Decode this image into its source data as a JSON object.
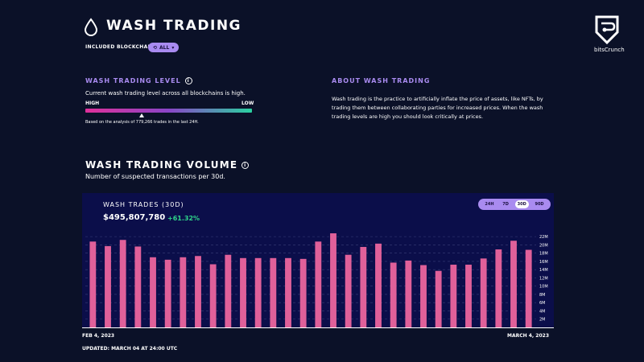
{
  "header": {
    "title": "WASH TRADING",
    "included_label": "INCLUDED BLOCKCHAINS",
    "chain_filter": "ALL",
    "brand": "bitsCrunch"
  },
  "level": {
    "heading": "WASH TRADING LEVEL",
    "description": "Current wash trading level across all blockchains is high.",
    "high_label": "HIGH",
    "low_label": "LOW",
    "basis": "Based on the analysis of 779,266 trades in the last 24H."
  },
  "about": {
    "heading": "ABOUT WASH TRADING",
    "text": "Wash trading is the practice to artificially inflate the price of assets, like NFTs, by trading them between collaborating parties for increased prices. When the wash trading levels are high you should look critically at prices."
  },
  "volume": {
    "heading": "WASH TRADING VOLUME",
    "subtitle": "Number of suspected transactions per 30d.",
    "panel_title": "WASH TRADES (30D)",
    "amount": "$495,807,780",
    "change": "+61.32%",
    "tabs": [
      "24H",
      "7D",
      "30D",
      "90D"
    ],
    "active_tab": "30D",
    "date_start": "FEB 4, 2023",
    "date_end": "MARCH 4, 2023",
    "updated": "UPDATED: MARCH 04 AT 24:00 UTC"
  },
  "colors": {
    "accent": "#a98bf0",
    "bar": "#e0609a",
    "positive": "#2fd58a"
  },
  "chart_data": {
    "type": "bar",
    "values": [
      20.8,
      19.7,
      21.2,
      19.6,
      17.0,
      16.4,
      17.0,
      17.3,
      15.3,
      17.6,
      16.8,
      16.8,
      16.8,
      16.8,
      16.6,
      20.8,
      22.8,
      17.6,
      19.5,
      20.3,
      15.7,
      16.2,
      15.1,
      13.7,
      15.2,
      15.2,
      16.7,
      18.9,
      21.0,
      18.8
    ],
    "y_ticks": [
      22,
      20,
      18,
      16,
      14,
      12,
      10,
      8,
      6,
      4,
      2
    ],
    "y_tick_labels": [
      "22M",
      "20M",
      "18M",
      "16M",
      "14M",
      "12M",
      "10M",
      "8M",
      "6M",
      "4M",
      "2M"
    ],
    "ylim": [
      0,
      23
    ],
    "grid": true
  }
}
